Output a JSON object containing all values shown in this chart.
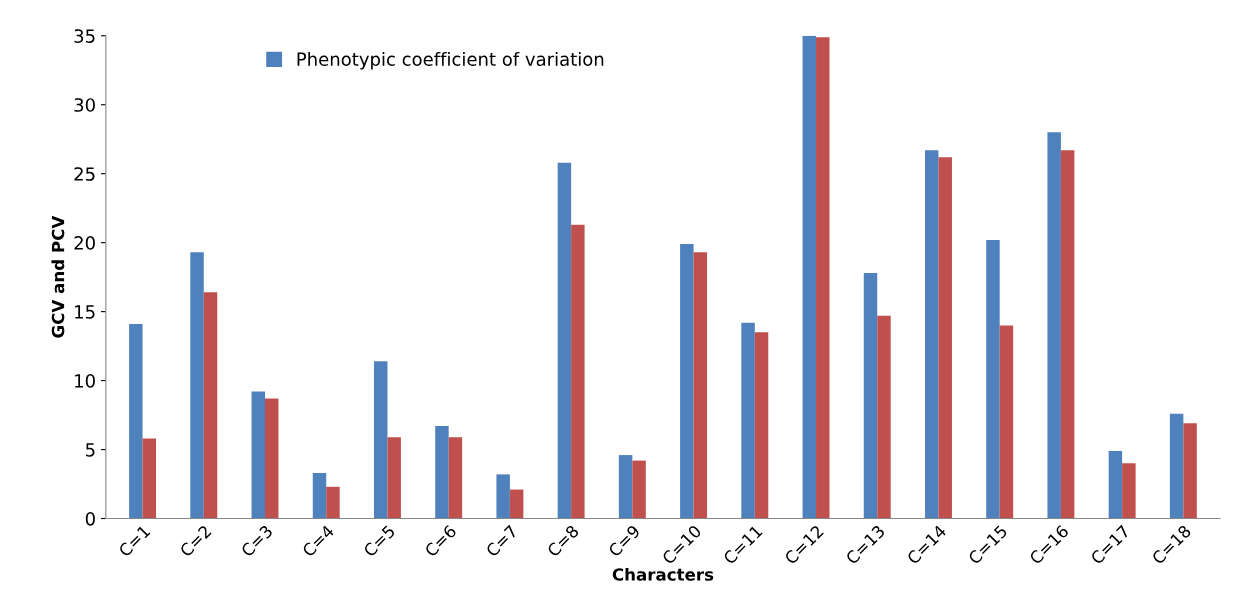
{
  "chart_data": {
    "type": "bar",
    "xlabel": "Characters",
    "ylabel": "GCV and PCV",
    "categories": [
      "C=1",
      "C=2",
      "C=3",
      "C=4",
      "C=5",
      "C=6",
      "C=7",
      "C=8",
      "C=9",
      "C=10",
      "C=11",
      "C=12",
      "C=13",
      "C=14",
      "C=15",
      "C=16",
      "C=17",
      "C=18"
    ],
    "series": [
      {
        "name": "Phenotypic coefficient of variation",
        "color": "#4f81bd",
        "values": [
          14.1,
          19.3,
          9.2,
          3.3,
          11.4,
          6.7,
          3.2,
          25.8,
          4.6,
          19.9,
          14.2,
          35.0,
          17.8,
          26.7,
          20.2,
          28.0,
          4.9,
          7.6
        ]
      },
      {
        "color": "#c0504d",
        "values": [
          5.8,
          16.4,
          8.7,
          2.3,
          5.9,
          5.9,
          2.1,
          21.3,
          4.2,
          19.3,
          13.5,
          34.9,
          14.7,
          26.2,
          14.0,
          26.7,
          4.0,
          6.9
        ]
      }
    ],
    "ylim": [
      0,
      35
    ],
    "yticks": [
      0,
      5,
      10,
      15,
      20,
      25,
      30,
      35
    ],
    "grid": false,
    "legend": "top left"
  }
}
